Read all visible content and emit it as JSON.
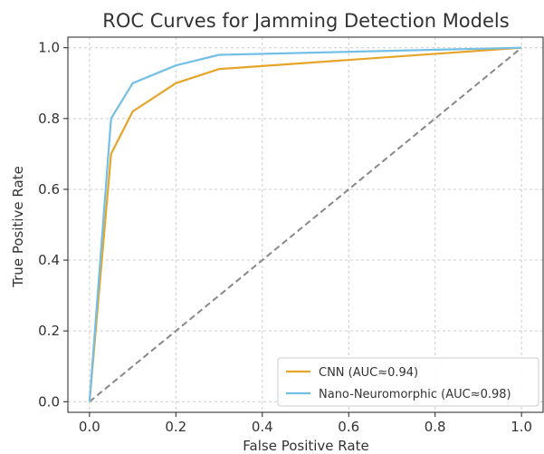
{
  "chart_data": {
    "type": "line",
    "title": "ROC Curves for Jamming Detection Models",
    "xlabel": "False Positive Rate",
    "ylabel": "True Positive Rate",
    "xlim": [
      -0.05,
      1.05
    ],
    "ylim": [
      -0.03,
      1.03
    ],
    "xticks": [
      0.0,
      0.2,
      0.4,
      0.6,
      0.8,
      1.0
    ],
    "yticks": [
      0.0,
      0.2,
      0.4,
      0.6,
      0.8,
      1.0
    ],
    "xtick_labels": [
      "0.0",
      "0.2",
      "0.4",
      "0.6",
      "0.8",
      "1.0"
    ],
    "ytick_labels": [
      "0.0",
      "0.2",
      "0.4",
      "0.6",
      "0.8",
      "1.0"
    ],
    "grid": true,
    "legend_position": "bottom-right",
    "series": [
      {
        "name": "CNN (AUC≈0.94)",
        "color": "#e6a428",
        "x": [
          0.0,
          0.05,
          0.1,
          0.2,
          0.3,
          1.0
        ],
        "y": [
          0.0,
          0.7,
          0.82,
          0.9,
          0.94,
          1.0
        ]
      },
      {
        "name": "Nano-Neuromorphic (AUC≈0.98)",
        "color": "#74bfe6",
        "x": [
          0.0,
          0.05,
          0.1,
          0.2,
          0.3,
          1.0
        ],
        "y": [
          0.0,
          0.8,
          0.9,
          0.95,
          0.98,
          1.0
        ]
      }
    ],
    "reference_line": {
      "x": [
        0.0,
        1.0
      ],
      "y": [
        0.0,
        1.0
      ],
      "color": "#888888",
      "style": "dashed"
    }
  }
}
